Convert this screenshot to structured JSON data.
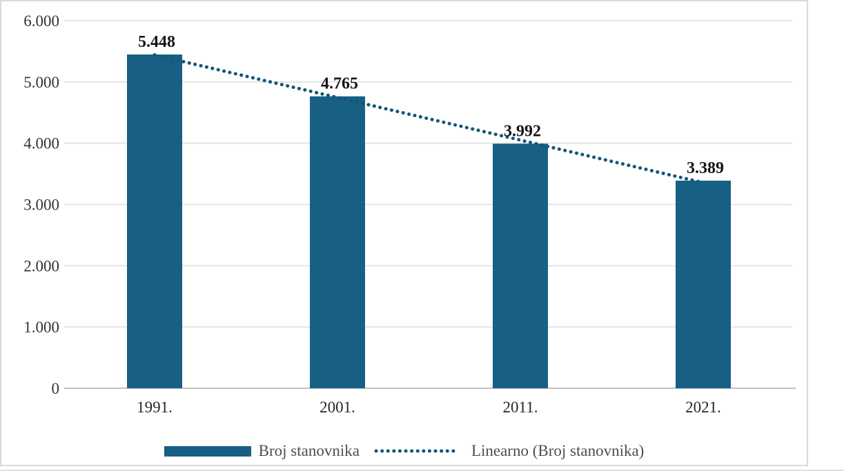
{
  "chart_data": {
    "type": "bar",
    "title": "",
    "categories": [
      "1991.",
      "2001.",
      "2011.",
      "2021."
    ],
    "series": [
      {
        "name": "Broj stanovnika",
        "values": [
          5448,
          4765,
          3992,
          3389
        ]
      }
    ],
    "data_labels": [
      "5.448",
      "4.765",
      "3.992",
      "3.389"
    ],
    "trendline": {
      "name": "Linearno (Broj stanovnika)",
      "type": "linear",
      "style": "dotted",
      "endpoint_values": [
        5441,
        3356
      ]
    },
    "y_axis": {
      "ticks": [
        "6.000",
        "5.000",
        "4.000",
        "3.000",
        "2.000",
        "1.000",
        "0"
      ],
      "tick_values": [
        6000,
        5000,
        4000,
        3000,
        2000,
        1000,
        0
      ],
      "range": [
        0,
        6000
      ]
    },
    "x_axis_label": "",
    "y_axis_label": "",
    "grid": true,
    "legend_position": "bottom",
    "colors": {
      "bar": "#176084",
      "trendline": "#14557a",
      "gridline": "#e4e4e4",
      "axis_line": "#c0c0c0",
      "value_label_text": "#141414",
      "tick_text": "#333333",
      "category_text": "#262626",
      "legend_text": "#4d4d4d",
      "frame_border": "#d9d9d9"
    }
  }
}
